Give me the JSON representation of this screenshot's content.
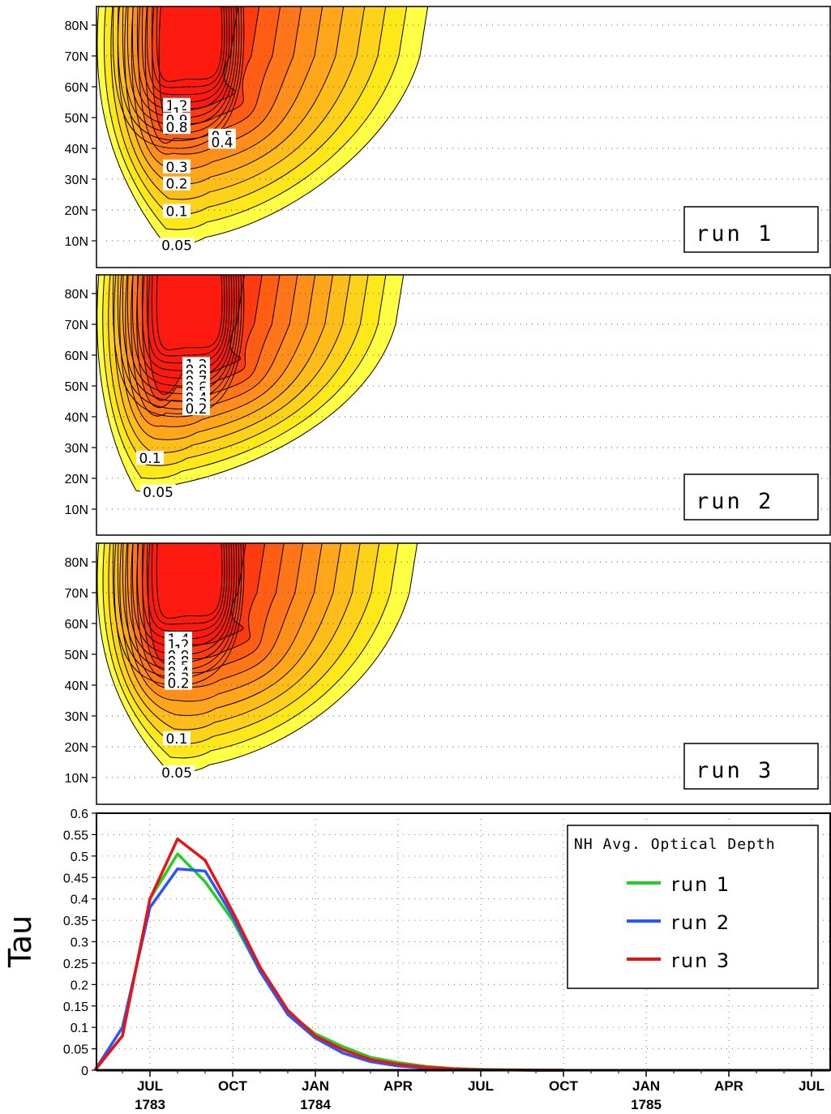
{
  "chart_data": [
    {
      "type": "contour",
      "run_label": "run 1",
      "yticks": [
        "10N",
        "20N",
        "30N",
        "40N",
        "50N",
        "60N",
        "70N",
        "80N"
      ],
      "contour_labels": [
        "1.2",
        "1",
        "0.9",
        "0.8",
        "0.5",
        "0.4",
        "0.3",
        "0.2",
        "0.1",
        "0.05"
      ],
      "grid": true
    },
    {
      "type": "contour",
      "run_label": "run 2",
      "yticks": [
        "10N",
        "20N",
        "30N",
        "40N",
        "50N",
        "60N",
        "70N",
        "80N"
      ],
      "contour_labels": [
        "1.2",
        "0.9",
        "0.8",
        "0.7",
        "0.6",
        "0.5",
        "0.4",
        "0.3",
        "0.2",
        "0.1",
        "0.05"
      ],
      "grid": true
    },
    {
      "type": "contour",
      "run_label": "run 3",
      "yticks": [
        "10N",
        "20N",
        "30N",
        "40N",
        "50N",
        "60N",
        "70N",
        "80N"
      ],
      "contour_labels": [
        "1.4",
        "1.2",
        "1",
        "0.9",
        "0.8",
        "0.5",
        "0.4",
        "0.3",
        "0.2",
        "0.1",
        "0.05"
      ],
      "grid": true
    },
    {
      "type": "line",
      "legend_title": "NH Avg. Optical Depth",
      "ylabel": "Tau",
      "ylim": [
        0,
        0.6
      ],
      "yticks": [
        "0",
        "0.05",
        "0.1",
        "0.15",
        "0.2",
        "0.25",
        "0.3",
        "0.35",
        "0.4",
        "0.45",
        "0.5",
        "0.55",
        "0.6"
      ],
      "xticks": [
        {
          "label": "JUL",
          "year": "1783"
        },
        {
          "label": "OCT",
          "year": ""
        },
        {
          "label": "JAN",
          "year": "1784"
        },
        {
          "label": "APR",
          "year": ""
        },
        {
          "label": "JUL",
          "year": ""
        },
        {
          "label": "OCT",
          "year": ""
        },
        {
          "label": "JAN",
          "year": "1785"
        },
        {
          "label": "APR",
          "year": ""
        },
        {
          "label": "JUL",
          "year": ""
        }
      ],
      "x_months_from_jul_1783": [
        -2,
        -1,
        0,
        1,
        2,
        3,
        4,
        5,
        6,
        7,
        8,
        9,
        10,
        11,
        12,
        13,
        14,
        15
      ],
      "series": [
        {
          "name": "run 1",
          "color": "#22d022",
          "values": [
            0,
            0.08,
            0.4,
            0.505,
            0.44,
            0.35,
            0.23,
            0.135,
            0.085,
            0.055,
            0.03,
            0.018,
            0.009,
            0.004,
            0.002,
            0.001,
            0.0005,
            0
          ]
        },
        {
          "name": "run 2",
          "color": "#2b55ff",
          "values": [
            0,
            0.1,
            0.38,
            0.47,
            0.465,
            0.36,
            0.23,
            0.13,
            0.075,
            0.04,
            0.02,
            0.01,
            0.005,
            0.002,
            0.001,
            0.0005,
            0,
            0
          ]
        },
        {
          "name": "run 3",
          "color": "#ee1111",
          "values": [
            0,
            0.08,
            0.4,
            0.54,
            0.49,
            0.37,
            0.24,
            0.14,
            0.08,
            0.048,
            0.025,
            0.014,
            0.007,
            0.003,
            0.001,
            0.0005,
            0,
            0
          ]
        }
      ]
    }
  ]
}
